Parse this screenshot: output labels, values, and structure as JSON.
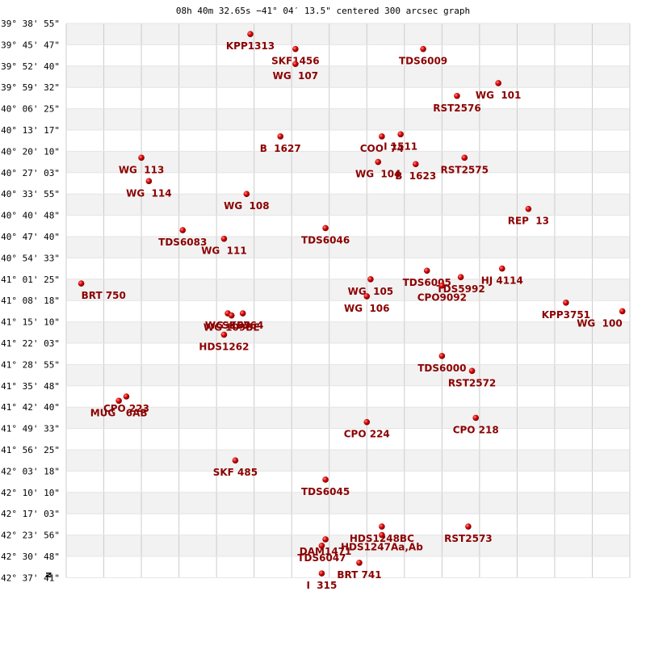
{
  "chart_data": {
    "type": "scatter",
    "title": "08h 40m 32.65s −41° 04′ 13.5\" centered 300 arcsec graph",
    "y_tick_labels": [
      "-39° 38' 55\"",
      "-39° 45' 47\"",
      "-39° 52' 40\"",
      "-39° 59' 32\"",
      "-40° 06' 25\"",
      "-40° 13' 17\"",
      "-40° 20' 10\"",
      "-40° 27' 03\"",
      "-40° 33' 55\"",
      "-40° 40' 48\"",
      "-40° 47' 40\"",
      "-40° 54' 33\"",
      "-41° 01' 25\"",
      "-41° 08' 18\"",
      "-41° 15' 10\"",
      "-41° 22' 03\"",
      "-41° 28' 55\"",
      "-41° 35' 48\"",
      "-41° 42' 40\"",
      "-41° 49' 33\"",
      "-41° 56' 25\"",
      "-42° 03' 18\"",
      "-42° 10' 10\"",
      "-42° 17' 03\"",
      "-42° 23' 56\"",
      "-42° 30' 48\"",
      "-42° 37' 41\""
    ],
    "x_gridlines": 15,
    "y_range_rows": 26,
    "x_range": [
      0,
      15
    ],
    "north_marker": "N",
    "grid": true,
    "colors": {
      "point": "#cc0000",
      "label": "#8b0000",
      "band": "#f2f2f2",
      "grid": "#cccccc"
    },
    "points": [
      {
        "name": "KPP1313",
        "x": 4.9,
        "y": 0.5
      },
      {
        "name": "SKF1456",
        "x": 6.1,
        "y": 1.2
      },
      {
        "name": "WG  107",
        "x": 6.1,
        "y": 1.9
      },
      {
        "name": "TDS6009",
        "x": 9.5,
        "y": 1.2
      },
      {
        "name": "WG  101",
        "x": 11.5,
        "y": 2.8
      },
      {
        "name": "RST2576",
        "x": 10.4,
        "y": 3.4
      },
      {
        "name": "B  1627",
        "x": 5.7,
        "y": 5.3
      },
      {
        "name": "COO  74",
        "x": 8.4,
        "y": 5.3
      },
      {
        "name": "I 1511",
        "x": 8.9,
        "y": 5.2
      },
      {
        "name": "WG  113",
        "x": 2.0,
        "y": 6.3
      },
      {
        "name": "RST2575",
        "x": 10.6,
        "y": 6.3
      },
      {
        "name": "WG  104",
        "x": 8.3,
        "y": 6.5
      },
      {
        "name": "B  1623",
        "x": 9.3,
        "y": 6.6
      },
      {
        "name": "WG  114",
        "x": 2.2,
        "y": 7.4
      },
      {
        "name": "WG  108",
        "x": 4.8,
        "y": 8.0
      },
      {
        "name": "REP  13",
        "x": 12.3,
        "y": 8.7
      },
      {
        "name": "TDS6083",
        "x": 3.1,
        "y": 9.7
      },
      {
        "name": "TDS6046",
        "x": 6.9,
        "y": 9.6
      },
      {
        "name": "WG  111",
        "x": 4.2,
        "y": 10.1
      },
      {
        "name": "TDS6005",
        "x": 9.6,
        "y": 11.6
      },
      {
        "name": "HJ 4114",
        "x": 11.6,
        "y": 11.5
      },
      {
        "name": "TDS5992",
        "x": 10.5,
        "y": 11.9
      },
      {
        "name": "CPO9092",
        "x": 10.0,
        "y": 12.3
      },
      {
        "name": "WG  105",
        "x": 8.1,
        "y": 12.0
      },
      {
        "name": "WG  106",
        "x": 8.0,
        "y": 12.8
      },
      {
        "name": "BRT 750",
        "x": 0.4,
        "y": 12.2
      },
      {
        "name": "KPP3751",
        "x": 13.3,
        "y": 13.1
      },
      {
        "name": "WG  100",
        "x": 14.8,
        "y": 13.5
      },
      {
        "name": "WG  109",
        "x": 4.3,
        "y": 13.6
      },
      {
        "name": "SKF764",
        "x": 4.7,
        "y": 13.6
      },
      {
        "name": "WG 109BE",
        "x": 4.4,
        "y": 13.7
      },
      {
        "name": "HDS1262",
        "x": 4.2,
        "y": 14.6
      },
      {
        "name": "TDS6000",
        "x": 10.0,
        "y": 15.6
      },
      {
        "name": "RST2572",
        "x": 10.8,
        "y": 16.3
      },
      {
        "name": "CPO 223",
        "x": 1.6,
        "y": 17.5
      },
      {
        "name": "MUG   6AB",
        "x": 1.4,
        "y": 17.7
      },
      {
        "name": "CPO 218",
        "x": 10.9,
        "y": 18.5
      },
      {
        "name": "CPO 224",
        "x": 8.0,
        "y": 18.7
      },
      {
        "name": "SKF 485",
        "x": 4.5,
        "y": 20.5
      },
      {
        "name": "TDS6045",
        "x": 6.9,
        "y": 21.4
      },
      {
        "name": "RST2573",
        "x": 10.7,
        "y": 23.6
      },
      {
        "name": "HDS1248BC",
        "x": 8.4,
        "y": 23.6
      },
      {
        "name": "HDS1247Aa,Ab",
        "x": 8.4,
        "y": 24.0
      },
      {
        "name": "DAM1471",
        "x": 6.9,
        "y": 24.2
      },
      {
        "name": "TDS6047",
        "x": 6.8,
        "y": 24.5
      },
      {
        "name": "BRT 741",
        "x": 7.8,
        "y": 25.3
      },
      {
        "name": "I  315",
        "x": 6.8,
        "y": 25.8
      }
    ]
  }
}
